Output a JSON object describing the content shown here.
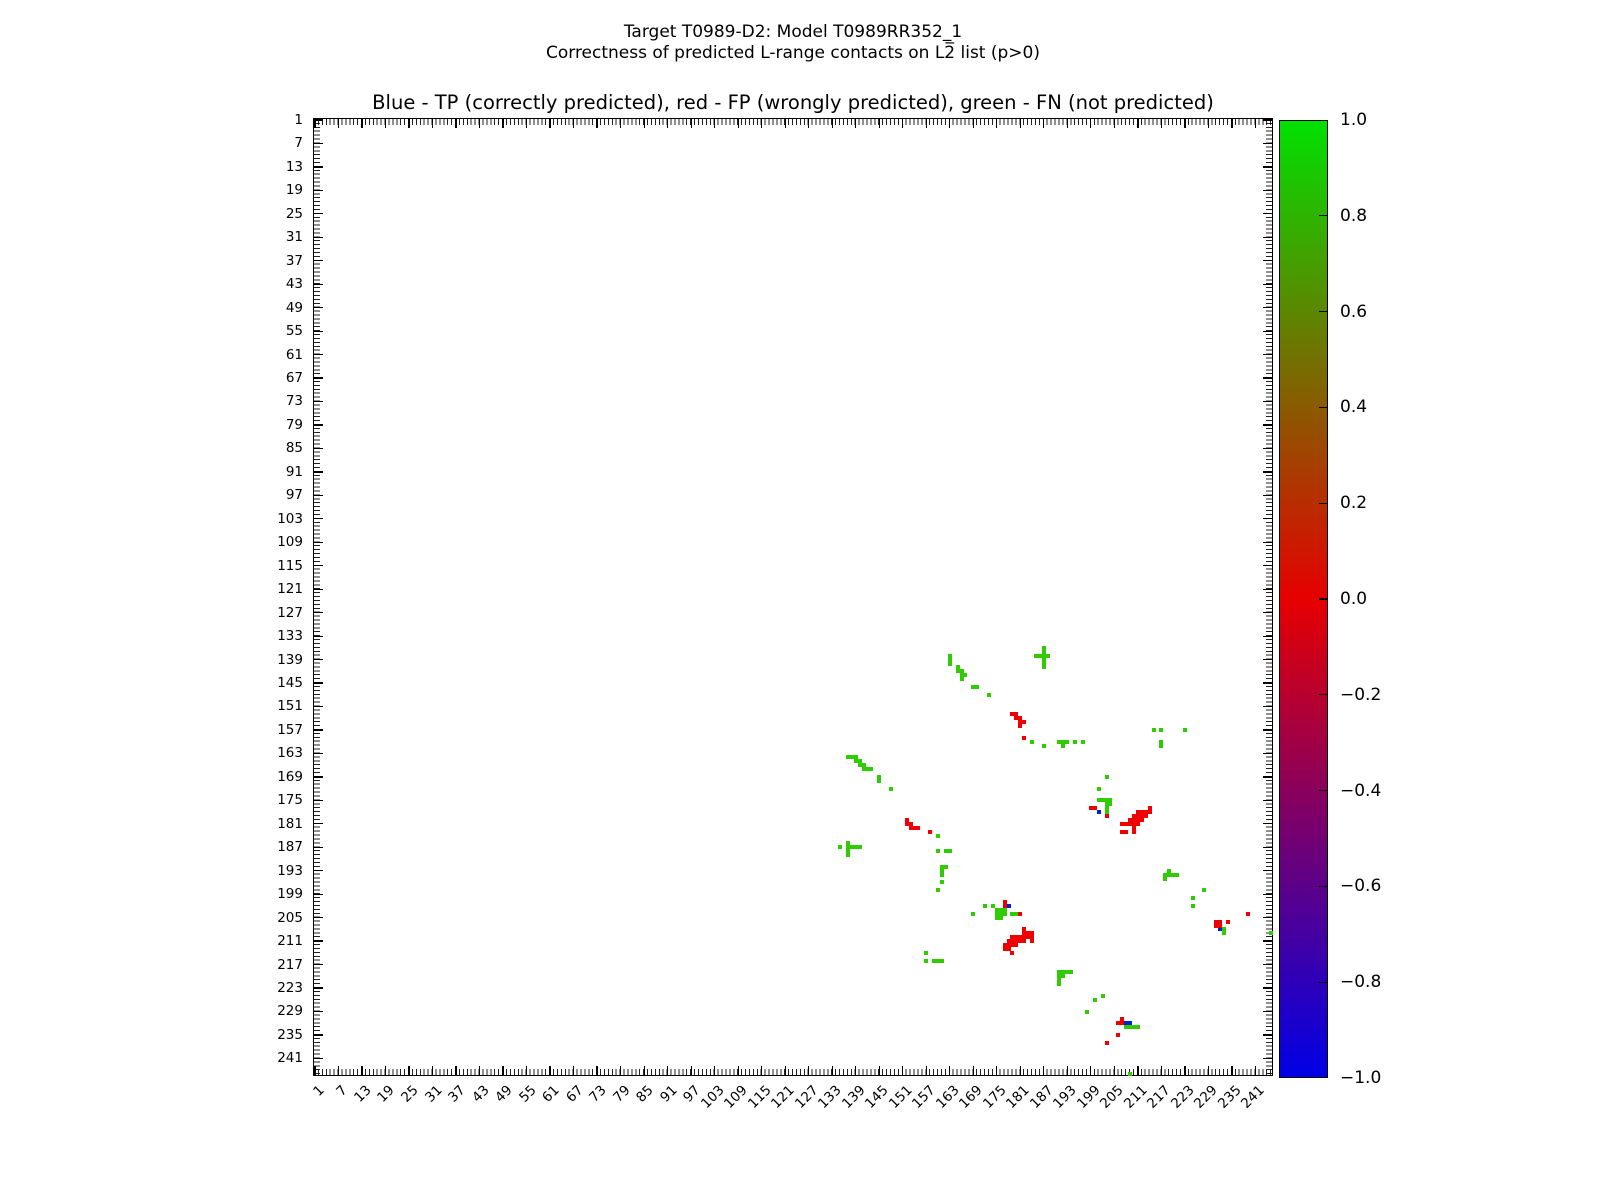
{
  "figure": {
    "suptitle_line1": "Target T0989-D2: Model T0989RR352_1",
    "suptitle_line2": "Correctness of predicted L-range contacts on L2̅ list (p>0)"
  },
  "chart_data": {
    "type": "heatmap",
    "title": "Blue - TP (correctly predicted), red - FP (wrongly predicted), green - FN (not predicted)",
    "suptitle": [
      "Target T0989-D2: Model T0989RR352_1",
      "Correctness of predicted L-range contacts on L2̅ list (p>0)"
    ],
    "xlabel": "",
    "ylabel": "",
    "axis_range": [
      1,
      245
    ],
    "grid": false,
    "tick_values": [
      1,
      7,
      13,
      19,
      25,
      31,
      37,
      43,
      49,
      55,
      61,
      67,
      73,
      79,
      85,
      91,
      97,
      103,
      109,
      115,
      121,
      127,
      133,
      139,
      145,
      151,
      157,
      163,
      169,
      175,
      181,
      187,
      193,
      199,
      205,
      211,
      217,
      223,
      229,
      235,
      241
    ],
    "colorbar": {
      "min": -1.0,
      "max": 1.0,
      "tick_labels": [
        "1.0",
        "0.8",
        "0.6",
        "0.4",
        "0.2",
        "0.0",
        "−0.2",
        "−0.4",
        "−0.6",
        "−0.8",
        "−1.0"
      ],
      "gradient_top": "#00e100",
      "gradient_mid": "#e60000",
      "gradient_bottom": "#0000e6"
    },
    "series": [
      {
        "name": "TP (correctly predicted)",
        "legend_color_word": "Blue",
        "color": "#0022cc",
        "points": [
          [
            201,
            178
          ],
          [
            178,
            202
          ],
          [
            232,
            208
          ],
          [
            208,
            232
          ],
          [
            209,
            232
          ]
        ]
      },
      {
        "name": "FP (wrongly predicted)",
        "legend_color_word": "red",
        "color": "#ee0000",
        "points": [
          [
            179,
            153
          ],
          [
            180,
            153
          ],
          [
            180,
            154
          ],
          [
            181,
            154
          ],
          [
            181,
            155
          ],
          [
            182,
            155
          ],
          [
            181,
            156
          ],
          [
            182,
            159
          ],
          [
            199,
            177
          ],
          [
            200,
            177
          ],
          [
            203,
            179
          ],
          [
            214,
            177
          ],
          [
            211,
            178
          ],
          [
            212,
            178
          ],
          [
            213,
            178
          ],
          [
            214,
            178
          ],
          [
            210,
            179
          ],
          [
            211,
            179
          ],
          [
            212,
            179
          ],
          [
            213,
            179
          ],
          [
            209,
            180
          ],
          [
            210,
            180
          ],
          [
            211,
            180
          ],
          [
            212,
            180
          ],
          [
            207,
            181
          ],
          [
            208,
            181
          ],
          [
            209,
            181
          ],
          [
            210,
            181
          ],
          [
            211,
            181
          ],
          [
            210,
            182
          ],
          [
            207,
            183
          ],
          [
            208,
            183
          ],
          [
            210,
            183
          ],
          [
            152,
            180
          ],
          [
            152,
            181
          ],
          [
            153,
            181
          ],
          [
            153,
            182
          ],
          [
            154,
            182
          ],
          [
            155,
            182
          ],
          [
            158,
            183
          ],
          [
            177,
            201
          ],
          [
            177,
            202
          ],
          [
            181,
            204
          ],
          [
            239,
            204
          ],
          [
            234,
            206
          ],
          [
            231,
            206
          ],
          [
            232,
            206
          ],
          [
            231,
            207
          ],
          [
            232,
            207
          ],
          [
            182,
            208
          ],
          [
            182,
            209
          ],
          [
            183,
            209
          ],
          [
            184,
            209
          ],
          [
            179,
            210
          ],
          [
            180,
            210
          ],
          [
            181,
            210
          ],
          [
            182,
            210
          ],
          [
            183,
            210
          ],
          [
            184,
            210
          ],
          [
            178,
            211
          ],
          [
            179,
            211
          ],
          [
            180,
            211
          ],
          [
            181,
            211
          ],
          [
            182,
            211
          ],
          [
            184,
            211
          ],
          [
            177,
            212
          ],
          [
            178,
            212
          ],
          [
            179,
            212
          ],
          [
            180,
            212
          ],
          [
            177,
            213
          ],
          [
            178,
            213
          ],
          [
            179,
            214
          ],
          [
            207,
            231
          ],
          [
            206,
            232
          ],
          [
            207,
            232
          ],
          [
            206,
            235
          ],
          [
            203,
            237
          ]
        ]
      },
      {
        "name": "FN (not predicted)",
        "legend_color_word": "green",
        "color": "#2ecc00",
        "points": [
          [
            163,
            138
          ],
          [
            163,
            139
          ],
          [
            163,
            140
          ],
          [
            165,
            141
          ],
          [
            165,
            142
          ],
          [
            166,
            142
          ],
          [
            166,
            143
          ],
          [
            167,
            143
          ],
          [
            166,
            144
          ],
          [
            169,
            146
          ],
          [
            170,
            146
          ],
          [
            173,
            148
          ],
          [
            187,
            136
          ],
          [
            187,
            137
          ],
          [
            185,
            138
          ],
          [
            186,
            138
          ],
          [
            187,
            138
          ],
          [
            188,
            138
          ],
          [
            187,
            139
          ],
          [
            187,
            140
          ],
          [
            187,
            141
          ],
          [
            215,
            157
          ],
          [
            217,
            157
          ],
          [
            223,
            157
          ],
          [
            217,
            160
          ],
          [
            217,
            161
          ],
          [
            184,
            160
          ],
          [
            187,
            161
          ],
          [
            191,
            160
          ],
          [
            192,
            160
          ],
          [
            193,
            160
          ],
          [
            192,
            161
          ],
          [
            195,
            160
          ],
          [
            197,
            160
          ],
          [
            137,
            164
          ],
          [
            138,
            164
          ],
          [
            139,
            164
          ],
          [
            139,
            165
          ],
          [
            140,
            165
          ],
          [
            140,
            166
          ],
          [
            141,
            166
          ],
          [
            141,
            167
          ],
          [
            142,
            167
          ],
          [
            143,
            167
          ],
          [
            145,
            169
          ],
          [
            145,
            170
          ],
          [
            148,
            172
          ],
          [
            203,
            169
          ],
          [
            201,
            172
          ],
          [
            201,
            175
          ],
          [
            202,
            175
          ],
          [
            203,
            175
          ],
          [
            204,
            175
          ],
          [
            203,
            176
          ],
          [
            204,
            176
          ],
          [
            203,
            177
          ],
          [
            203,
            178
          ],
          [
            160,
            184
          ],
          [
            135,
            187
          ],
          [
            137,
            186
          ],
          [
            137,
            187
          ],
          [
            137,
            188
          ],
          [
            137,
            189
          ],
          [
            138,
            187
          ],
          [
            139,
            187
          ],
          [
            140,
            187
          ],
          [
            160,
            188
          ],
          [
            162,
            188
          ],
          [
            163,
            188
          ],
          [
            161,
            192
          ],
          [
            162,
            192
          ],
          [
            161,
            193
          ],
          [
            161,
            194
          ],
          [
            161,
            196
          ],
          [
            160,
            198
          ],
          [
            219,
            193
          ],
          [
            218,
            194
          ],
          [
            219,
            194
          ],
          [
            220,
            194
          ],
          [
            221,
            194
          ],
          [
            218,
            195
          ],
          [
            172,
            202
          ],
          [
            174,
            202
          ],
          [
            169,
            204
          ],
          [
            175,
            203
          ],
          [
            176,
            203
          ],
          [
            177,
            203
          ],
          [
            175,
            204
          ],
          [
            176,
            204
          ],
          [
            177,
            204
          ],
          [
            179,
            204
          ],
          [
            180,
            204
          ],
          [
            175,
            205
          ],
          [
            176,
            205
          ],
          [
            228,
            198
          ],
          [
            225,
            200
          ],
          [
            225,
            202
          ],
          [
            233,
            208
          ],
          [
            233,
            209
          ],
          [
            245,
            209
          ],
          [
            157,
            214
          ],
          [
            157,
            216
          ],
          [
            159,
            216
          ],
          [
            160,
            216
          ],
          [
            161,
            216
          ],
          [
            191,
            219
          ],
          [
            192,
            219
          ],
          [
            193,
            219
          ],
          [
            194,
            219
          ],
          [
            191,
            220
          ],
          [
            192,
            220
          ],
          [
            191,
            221
          ],
          [
            191,
            222
          ],
          [
            202,
            225
          ],
          [
            200,
            226
          ],
          [
            198,
            229
          ],
          [
            208,
            233
          ],
          [
            209,
            233
          ],
          [
            210,
            233
          ],
          [
            211,
            233
          ],
          [
            209,
            245
          ]
        ]
      }
    ]
  }
}
